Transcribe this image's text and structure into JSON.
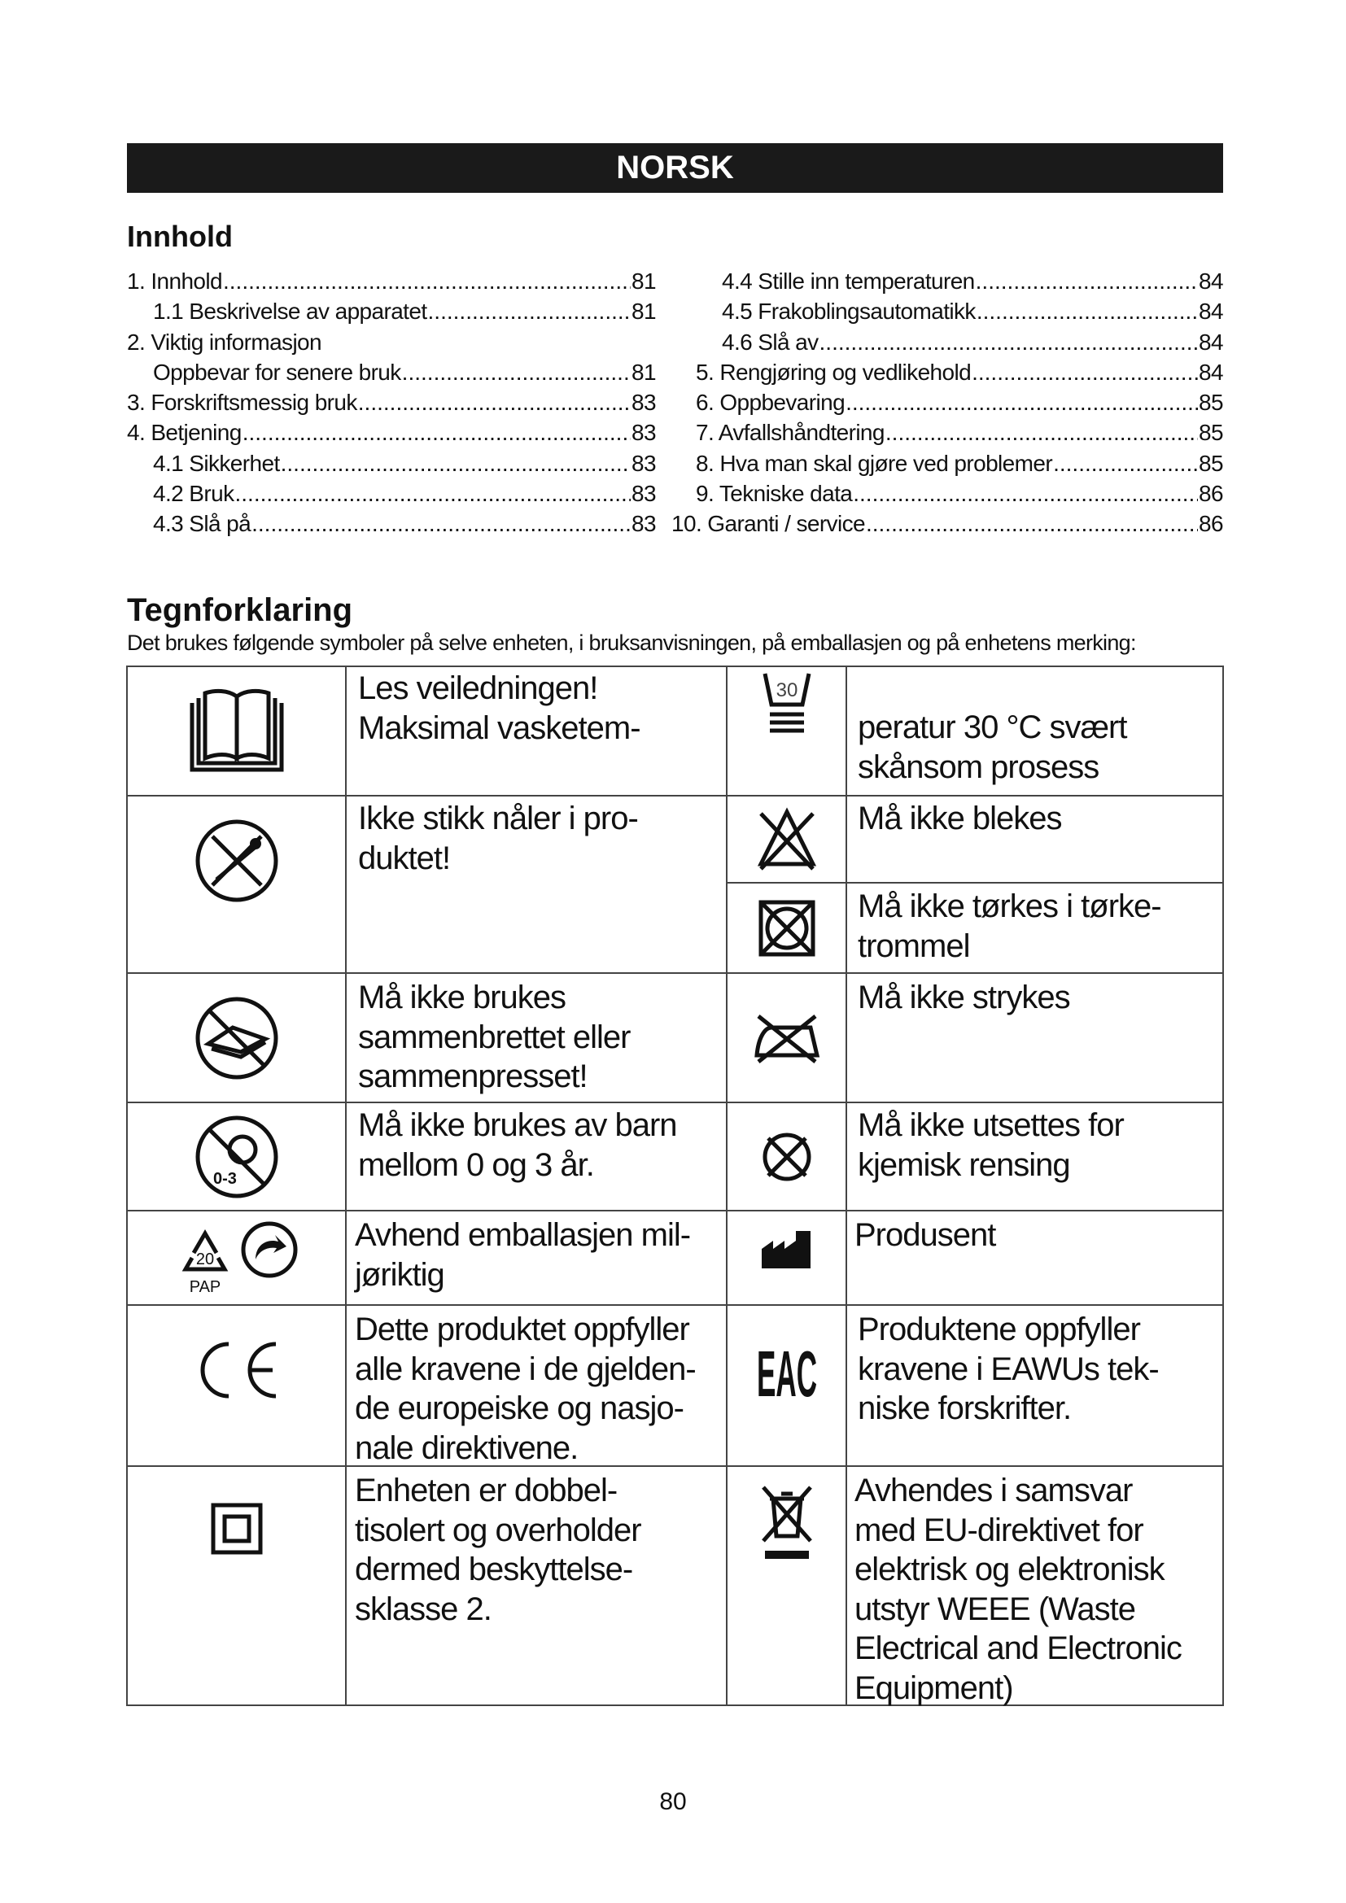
{
  "header": {
    "language": "NORSK"
  },
  "toc": {
    "title": "Innhold",
    "left": [
      {
        "label": "1. Innhold",
        "page": "81",
        "indent": 0
      },
      {
        "label": "1.1 Beskrivelse av apparatet",
        "page": "81",
        "indent": 1
      },
      {
        "label": "2.  Viktig informasjon",
        "page": "",
        "indent": 0
      },
      {
        "label": "Oppbevar for senere bruk",
        "page": "81",
        "indent": 1
      },
      {
        "label": "3. Forskriftsmessig bruk",
        "page": "83",
        "indent": 0
      },
      {
        "label": "4. Betjening",
        "page": "83",
        "indent": 0
      },
      {
        "label": "4.1 Sikkerhet",
        "page": "83",
        "indent": 1
      },
      {
        "label": "4.2 Bruk",
        "page": "83",
        "indent": 1
      },
      {
        "label": "4.3 Slå på",
        "page": "83",
        "indent": 1
      }
    ],
    "right": [
      {
        "label": "4.4 Stille inn temperaturen",
        "page": "84",
        "indent": 1
      },
      {
        "label": "4.5 Frakoblingsautomatikk",
        "page": "84",
        "indent": 1
      },
      {
        "label": "4.6 Slå av",
        "page": "84",
        "indent": 1
      },
      {
        "label": "5. Rengjøring og vedlikehold",
        "page": "84",
        "indent": 0
      },
      {
        "label": "6. Oppbevaring",
        "page": "85",
        "indent": 0
      },
      {
        "label": "7. Avfallshåndtering",
        "page": "85",
        "indent": 0
      },
      {
        "label": "8. Hva man skal gjøre ved problemer",
        "page": "85",
        "indent": 0
      },
      {
        "label": "9. Tekniske data",
        "page": "86",
        "indent": 0
      },
      {
        "label": "10. Garanti / service",
        "page": "86",
        "indent": -1
      }
    ]
  },
  "legend": {
    "title": "Tegnforklaring",
    "subtitle": "Det brukes følgende symboler på selve enheten, i bruksanvisningen, på emballasjen og på enhetens merking:",
    "symbols": [
      {
        "icon": "book-icon",
        "lines": [
          "Les veiledningen! Maksimal vasketem-"
        ]
      },
      {
        "icon": "wash-30-gentle-icon",
        "icon_text": "30",
        "lines": [
          "peratur 30 °C svært",
          "skånsom prosess"
        ]
      },
      {
        "icon": "no-needles-icon",
        "lines": [
          "Ikke stikk nåler i pro-",
          "duktet!"
        ]
      },
      {
        "icon": "do-not-bleach-icon",
        "lines": [
          "Må ikke blekes"
        ]
      },
      {
        "icon": "do-not-tumble-dry-icon",
        "lines": [
          "Må ikke tørkes i tørke-",
          "trommel"
        ]
      },
      {
        "icon": "do-not-fold-icon",
        "lines": [
          "Må ikke brukes",
          "sammenbrettet eller",
          "sammenpresset!"
        ]
      },
      {
        "icon": "do-not-iron-icon",
        "lines": [
          "Må ikke strykes"
        ]
      },
      {
        "icon": "not-for-children-0-3-icon",
        "icon_text": "0-3",
        "lines": [
          "Må ikke brukes av barn",
          "mellom 0 og 3 år."
        ]
      },
      {
        "icon": "do-not-dry-clean-icon",
        "lines": [
          "Må ikke utsettes for",
          "kjemisk rensing"
        ]
      },
      {
        "icon": "recycle-pap-20-icon",
        "icon_text": "20",
        "icon_label": "PAP",
        "lines": [
          "Avhend emballasjen mil-",
          "jøriktig"
        ]
      },
      {
        "icon": "manufacturer-icon",
        "lines": [
          "Produsent"
        ]
      },
      {
        "icon": "ce-mark-icon",
        "icon_text": "CE",
        "lines": [
          "Dette produktet oppfyller",
          "alle kravene i de gjelden-",
          "de europeiske og nasjo-",
          "nale direktivene."
        ]
      },
      {
        "icon": "eac-mark-icon",
        "icon_text": "EAC",
        "lines": [
          "Produktene oppfyller",
          "kravene i EAWUs tek-",
          "niske forskrifter."
        ]
      },
      {
        "icon": "protection-class-2-icon",
        "lines": [
          "Enheten er dobbel-",
          "tisolert og overholder",
          "dermed beskyttelse-",
          "sklasse 2."
        ]
      },
      {
        "icon": "weee-bin-icon",
        "lines": [
          "Avhendes i samsvar",
          "med EU-direktivet for",
          "elektrisk og elektronisk",
          "utstyr WEEE (Waste",
          "Electrical and Electronic",
          "Equipment)"
        ]
      }
    ]
  },
  "footer": {
    "page_number": "80"
  }
}
